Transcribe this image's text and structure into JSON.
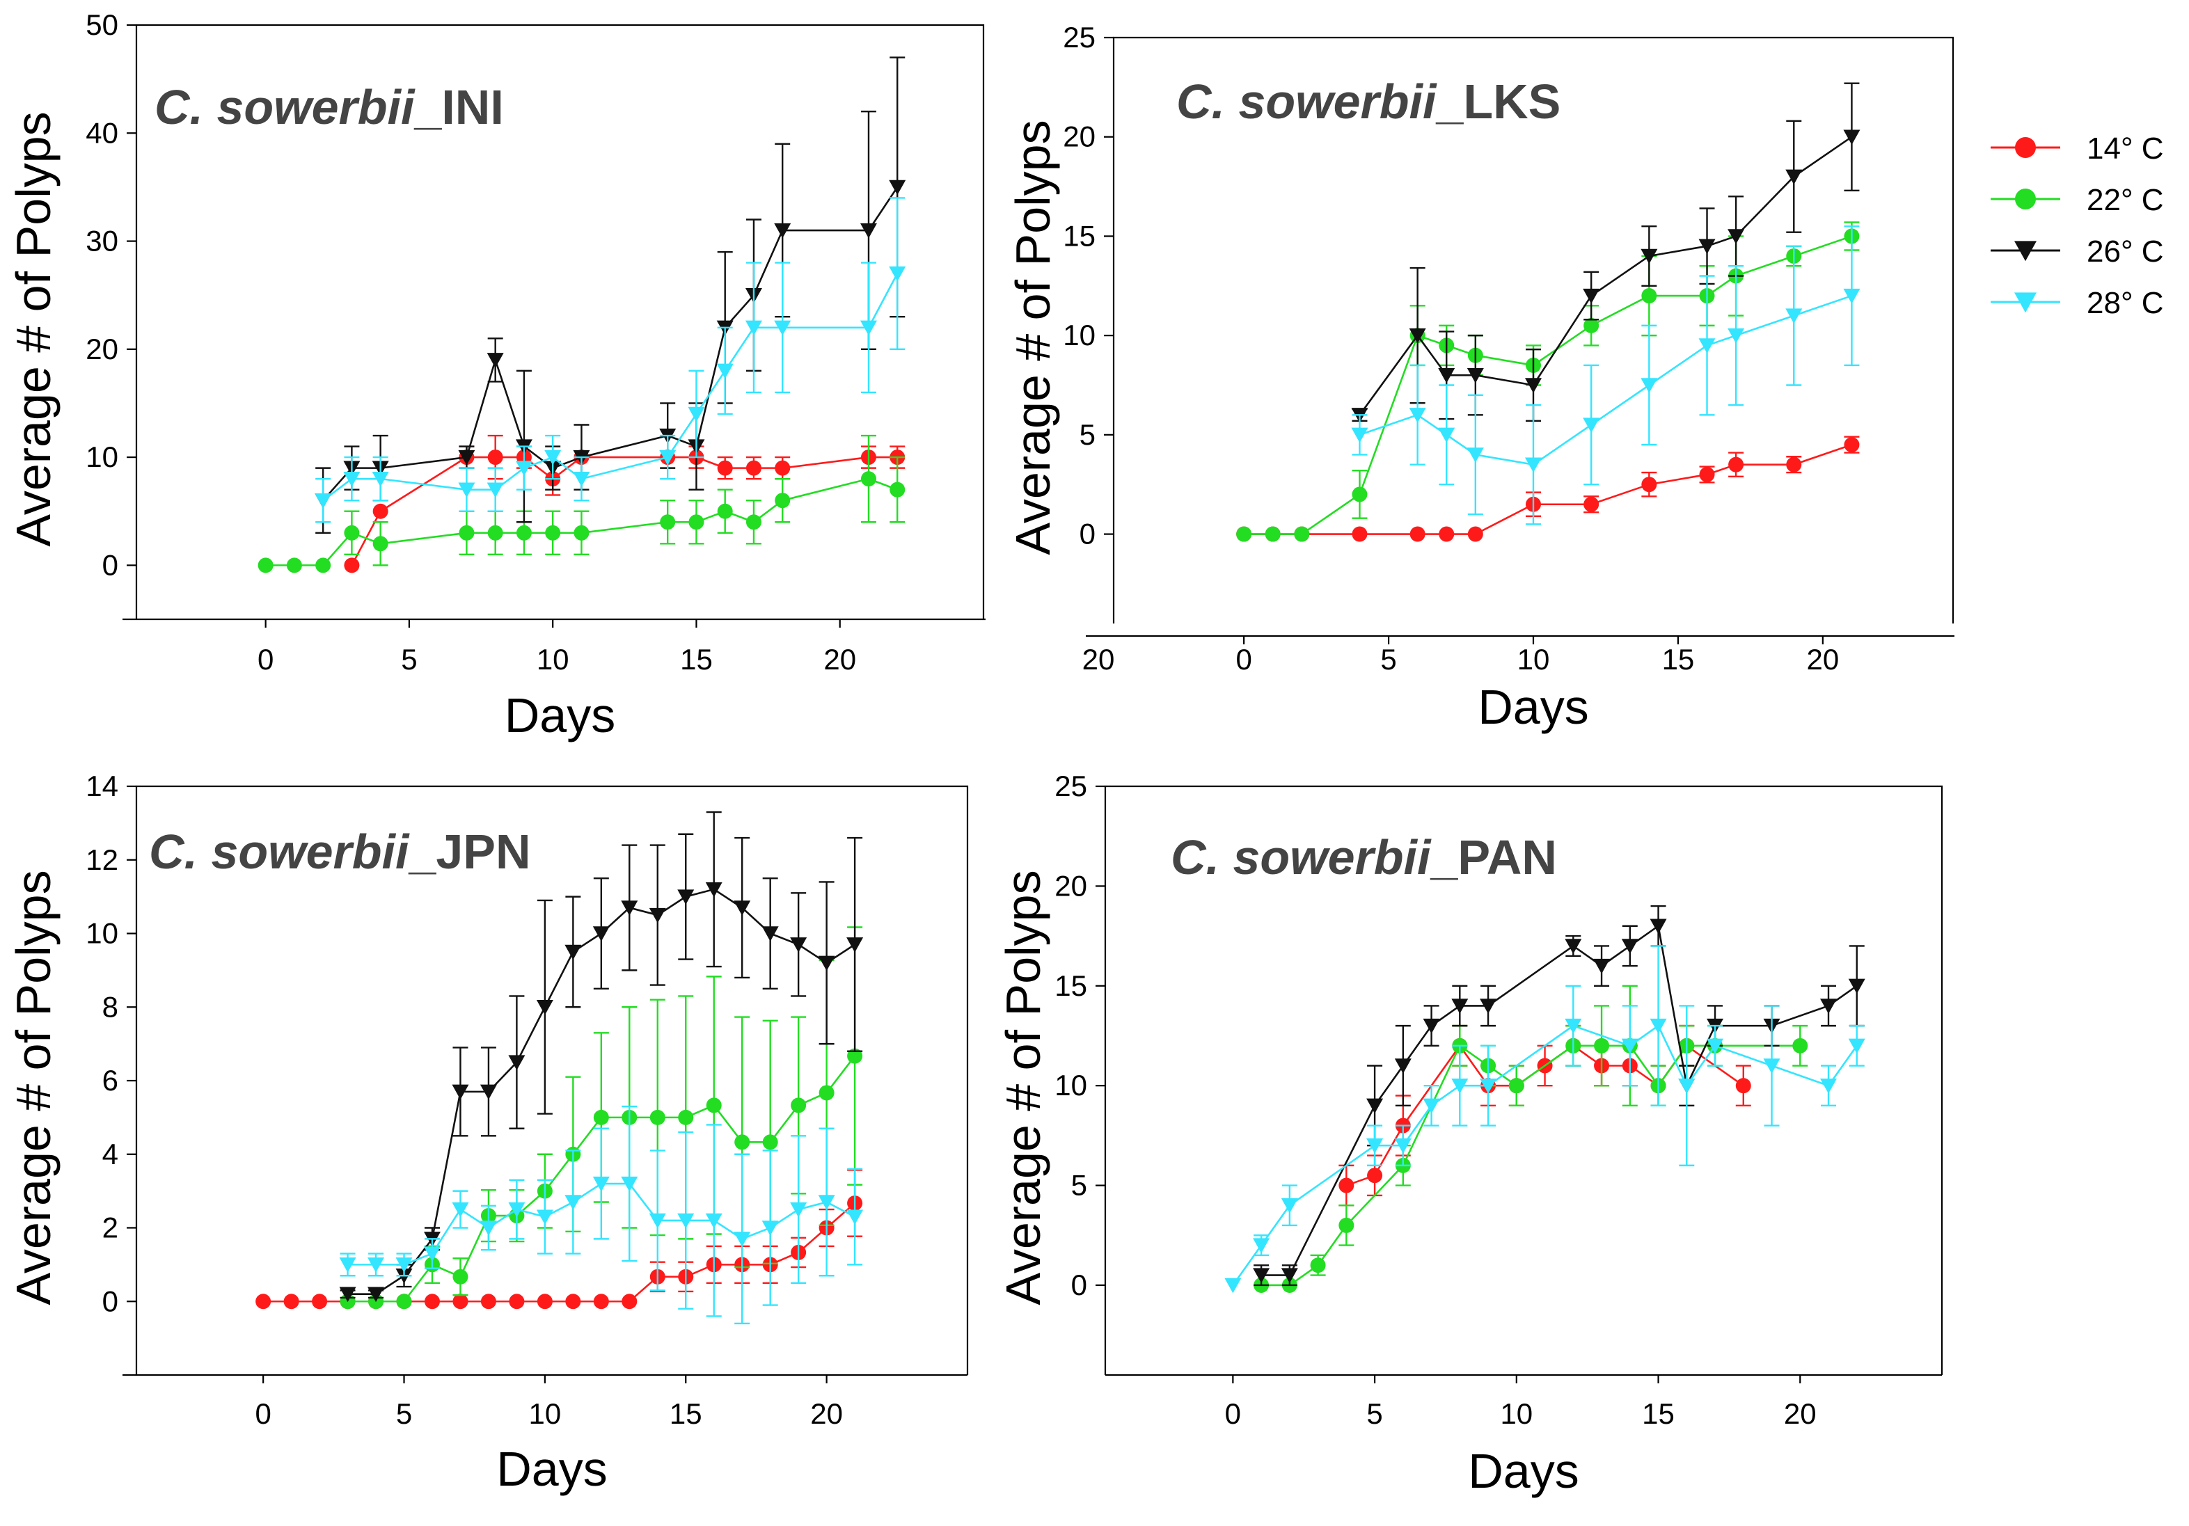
{
  "legend": {
    "entries": [
      {
        "label": "14° C",
        "color": "#ff1a1a",
        "marker": "circle"
      },
      {
        "label": "22° C",
        "color": "#22dd22",
        "marker": "circle"
      },
      {
        "label": "26° C",
        "color": "#111111",
        "marker": "triangle-down"
      },
      {
        "label": "28° C",
        "color": "#33e5ff",
        "marker": "triangle-down"
      }
    ]
  },
  "chart_data": [
    {
      "type": "line",
      "title_italic": "C. sowerbii",
      "title_suffix": "_INI",
      "xlabel": "Days",
      "ylabel": "Average # of Polyps",
      "xlim": [
        -4.5,
        25
      ],
      "ylim": [
        -5,
        50
      ],
      "xticks": [
        "0",
        "5",
        "10",
        "15",
        "20"
      ],
      "yticks": [
        "0",
        "10",
        "20",
        "30",
        "40",
        "50"
      ],
      "series": [
        {
          "name": "14° C",
          "color": "#ff1a1a",
          "marker": "circle",
          "x": [
            3,
            4,
            7,
            8,
            9,
            10,
            11,
            14,
            15,
            16,
            17,
            18,
            21,
            22
          ],
          "y": [
            0,
            5,
            10,
            10,
            10,
            8,
            10,
            10,
            10,
            9,
            9,
            9,
            10,
            10
          ],
          "err": [
            0,
            0,
            1,
            2,
            1,
            1.5,
            0,
            0,
            1,
            1,
            1,
            1,
            1,
            1
          ]
        },
        {
          "name": "22° C",
          "color": "#22dd22",
          "marker": "circle",
          "x": [
            0,
            1,
            2,
            3,
            4,
            7,
            8,
            9,
            10,
            11,
            14,
            15,
            16,
            17,
            18,
            21,
            22
          ],
          "y": [
            0,
            0,
            0,
            3,
            2,
            3,
            3,
            3,
            3,
            3,
            4,
            4,
            5,
            4,
            6,
            8,
            7
          ],
          "err": [
            0,
            0,
            0,
            2,
            2,
            2,
            2,
            2,
            2,
            2,
            2,
            2,
            2,
            2,
            2,
            4,
            3
          ]
        },
        {
          "name": "26° C",
          "color": "#111111",
          "marker": "triangle-down",
          "x": [
            2,
            3,
            4,
            7,
            8,
            9,
            10,
            11,
            14,
            15,
            16,
            17,
            18,
            21,
            22
          ],
          "y": [
            6,
            9,
            9,
            10,
            19,
            11,
            9,
            10,
            12,
            11,
            22,
            25,
            31,
            31,
            35
          ],
          "err": [
            3,
            2,
            3,
            1,
            2,
            7,
            2,
            3,
            3,
            4,
            7,
            7,
            8,
            11,
            12
          ]
        },
        {
          "name": "28° C",
          "color": "#33e5ff",
          "marker": "triangle-down",
          "x": [
            2,
            3,
            4,
            7,
            8,
            9,
            10,
            11,
            14,
            15,
            16,
            17,
            18,
            21,
            22
          ],
          "y": [
            6,
            8,
            8,
            7,
            7,
            9,
            10,
            8,
            10,
            14,
            18,
            22,
            22,
            22,
            27
          ],
          "err": [
            2,
            2,
            2,
            2,
            2,
            2,
            2,
            2,
            2,
            4,
            4,
            6,
            6,
            6,
            7
          ]
        }
      ]
    },
    {
      "type": "line",
      "title_italic": "C. sowerbii",
      "title_suffix": "_LKS",
      "xlabel": "Days",
      "ylabel": "Average # of Polyps",
      "xlim": [
        -4.5,
        24.5
      ],
      "ylim": [
        -4.5,
        25
      ],
      "xticks": [
        "0",
        "5",
        "10",
        "15",
        "20"
      ],
      "yticks": [
        "0",
        "5",
        "10",
        "15",
        "20",
        "25"
      ],
      "x_edge_label": "20",
      "series": [
        {
          "name": "14° C",
          "color": "#ff1a1a",
          "marker": "circle",
          "x": [
            0,
            1,
            2,
            4,
            6,
            7,
            8,
            10,
            12,
            14,
            16,
            17,
            19,
            21
          ],
          "y": [
            0,
            0,
            0,
            0,
            0,
            0,
            0,
            1.5,
            1.5,
            2.5,
            3,
            3.5,
            3.5,
            4.5
          ],
          "err": [
            0,
            0,
            0,
            0,
            0,
            0,
            0,
            0.6,
            0.4,
            0.6,
            0.4,
            0.6,
            0.4,
            0.4
          ]
        },
        {
          "name": "22° C",
          "color": "#22dd22",
          "marker": "circle",
          "x": [
            0,
            1,
            2,
            4,
            6,
            7,
            8,
            10,
            12,
            14,
            16,
            17,
            19,
            21
          ],
          "y": [
            0,
            0,
            0,
            2,
            10,
            9.5,
            9,
            8.5,
            10.5,
            12,
            12,
            13,
            14,
            15
          ],
          "err": [
            0,
            0,
            0,
            1.2,
            1.5,
            1,
            1,
            1,
            1,
            2,
            1.5,
            2,
            0.5,
            0.7
          ]
        },
        {
          "name": "26° C",
          "color": "#111111",
          "marker": "triangle-down",
          "x": [
            4,
            6,
            7,
            8,
            10,
            12,
            14,
            16,
            17,
            19,
            21
          ],
          "y": [
            6,
            10,
            8,
            8,
            7.5,
            12,
            14,
            14.5,
            15,
            18,
            20
          ],
          "err": [
            0.3,
            3.4,
            2.2,
            2,
            1.8,
            1.2,
            1.5,
            1.9,
            2,
            2.8,
            2.7
          ]
        },
        {
          "name": "28° C",
          "color": "#33e5ff",
          "marker": "triangle-down",
          "x": [
            4,
            6,
            7,
            8,
            10,
            12,
            14,
            16,
            17,
            19,
            21
          ],
          "y": [
            5,
            6,
            5,
            4,
            3.5,
            5.5,
            7.5,
            9.5,
            10,
            11,
            12
          ],
          "err": [
            1,
            2.5,
            2.5,
            3,
            3,
            3,
            3,
            3.5,
            3.5,
            3.5,
            3.5
          ]
        }
      ]
    },
    {
      "type": "line",
      "title_italic": "C. sowerbii",
      "title_suffix": "_JPN",
      "xlabel": "Days",
      "ylabel": "Average # of Polyps",
      "xlim": [
        -4.5,
        25
      ],
      "ylim": [
        -2,
        14
      ],
      "xticks": [
        "0",
        "5",
        "10",
        "15",
        "20"
      ],
      "yticks": [
        "0",
        "2",
        "4",
        "6",
        "8",
        "10",
        "12",
        "14"
      ],
      "series": [
        {
          "name": "14° C",
          "color": "#ff1a1a",
          "marker": "circle",
          "x": [
            0,
            1,
            2,
            3,
            4,
            5,
            6,
            7,
            8,
            9,
            10,
            11,
            12,
            13,
            14,
            15,
            16,
            17,
            18,
            19,
            20,
            21
          ],
          "y": [
            0,
            0,
            0,
            0,
            0,
            0,
            0,
            0,
            0,
            0,
            0,
            0,
            0,
            0,
            0.67,
            0.67,
            1,
            1,
            1,
            1.33,
            2,
            2.67
          ],
          "err": [
            0,
            0,
            0,
            0,
            0,
            0,
            0,
            0,
            0,
            0,
            0,
            0,
            0,
            0,
            0.4,
            0.4,
            0.5,
            0.5,
            0.5,
            0.4,
            0.5,
            0.9
          ]
        },
        {
          "name": "22° C",
          "color": "#22dd22",
          "marker": "circle",
          "x": [
            3,
            4,
            5,
            6,
            7,
            8,
            9,
            10,
            11,
            12,
            13,
            14,
            15,
            16,
            17,
            18,
            19,
            20,
            21
          ],
          "y": [
            0,
            0,
            0,
            1,
            0.67,
            2.33,
            2.33,
            3,
            4,
            5,
            5,
            5,
            5,
            5.33,
            4.33,
            4.33,
            5.33,
            5.67,
            6.67
          ],
          "err": [
            0,
            0,
            0,
            0.5,
            0.5,
            0.7,
            0.7,
            1,
            2.1,
            2.3,
            3,
            3.2,
            3.3,
            3.5,
            3.4,
            3.3,
            2.4,
            3.6,
            3.5
          ]
        },
        {
          "name": "26° C",
          "color": "#111111",
          "marker": "triangle-down",
          "x": [
            3,
            4,
            5,
            6,
            7,
            8,
            9,
            10,
            11,
            12,
            13,
            14,
            15,
            16,
            17,
            18,
            19,
            20,
            21
          ],
          "y": [
            0.2,
            0.2,
            0.7,
            1.7,
            5.7,
            5.7,
            6.5,
            8,
            9.5,
            10,
            10.7,
            10.5,
            11,
            11.2,
            10.7,
            10,
            9.7,
            9.2,
            9.7
          ],
          "err": [
            0.1,
            0.1,
            0.3,
            0.3,
            1.2,
            1.2,
            1.8,
            2.9,
            1.5,
            1.5,
            1.7,
            1.9,
            1.7,
            2.1,
            1.9,
            1.5,
            1.4,
            2.2,
            2.9
          ]
        },
        {
          "name": "28° C",
          "color": "#33e5ff",
          "marker": "triangle-down",
          "x": [
            3,
            4,
            5,
            6,
            7,
            8,
            9,
            10,
            11,
            12,
            13,
            14,
            15,
            16,
            17,
            18,
            19,
            20,
            21
          ],
          "y": [
            1,
            1,
            1,
            1.3,
            2.5,
            2,
            2.5,
            2.3,
            2.7,
            3.2,
            3.2,
            2.2,
            2.2,
            2.2,
            1.7,
            2,
            2.5,
            2.7,
            2.3
          ],
          "err": [
            0.3,
            0.3,
            0.3,
            0.4,
            0.5,
            0.6,
            0.8,
            1,
            1.4,
            1.5,
            2.1,
            1.9,
            2.4,
            2.6,
            2.3,
            2.1,
            2,
            2,
            1.3
          ]
        }
      ]
    },
    {
      "type": "line",
      "title_italic": "C. sowerbii",
      "title_suffix": "_PAN",
      "xlabel": "Days",
      "ylabel": "Average # of Polyps",
      "xlim": [
        -4.5,
        25
      ],
      "ylim": [
        -4.5,
        25
      ],
      "xticks": [
        "0",
        "5",
        "10",
        "15",
        "20"
      ],
      "yticks": [
        "0",
        "5",
        "10",
        "15",
        "20",
        "25"
      ],
      "series": [
        {
          "name": "14° C",
          "color": "#ff1a1a",
          "marker": "circle",
          "x": [
            4,
            5,
            6,
            8,
            9,
            10,
            11,
            12,
            13,
            14,
            15,
            16,
            18
          ],
          "y": [
            5,
            5.5,
            8,
            12,
            10,
            10,
            11,
            12,
            11,
            11,
            10,
            12,
            10
          ],
          "err": [
            1,
            1,
            1.5,
            1,
            1,
            1,
            1,
            1,
            1,
            1,
            1,
            1,
            1
          ]
        },
        {
          "name": "22° C",
          "color": "#22dd22",
          "marker": "circle",
          "x": [
            1,
            2,
            3,
            4,
            6,
            8,
            9,
            10,
            12,
            13,
            14,
            15,
            16,
            17,
            20
          ],
          "y": [
            0,
            0,
            1,
            3,
            6,
            12,
            11,
            10,
            12,
            12,
            12,
            10,
            12,
            12,
            12
          ],
          "err": [
            0,
            0,
            0.5,
            1,
            1,
            1,
            1,
            1,
            1,
            2,
            3,
            1,
            1,
            1,
            1
          ]
        },
        {
          "name": "26° C",
          "color": "#111111",
          "marker": "triangle-down",
          "x": [
            1,
            2,
            5,
            6,
            7,
            8,
            9,
            12,
            13,
            14,
            15,
            16,
            17,
            19,
            21,
            22
          ],
          "y": [
            0.5,
            0.5,
            9,
            11,
            13,
            14,
            14,
            17,
            16,
            17,
            18,
            10,
            13,
            13,
            14,
            15
          ],
          "err": [
            0.5,
            0.5,
            2,
            2,
            1,
            1,
            1,
            0.5,
            1,
            1,
            1,
            1,
            1,
            1,
            1,
            2
          ]
        },
        {
          "name": "28° C",
          "color": "#33e5ff",
          "marker": "triangle-down",
          "x": [
            0,
            1,
            2,
            5,
            6,
            7,
            8,
            9,
            12,
            14,
            15,
            16,
            17,
            19,
            21,
            22
          ],
          "y": [
            0,
            2,
            4,
            7,
            7,
            9,
            10,
            10,
            13,
            12,
            13,
            10,
            12,
            11,
            10,
            12
          ],
          "err": [
            0,
            0.5,
            1,
            1,
            1,
            1,
            2,
            2,
            2,
            2,
            4,
            4,
            1,
            3,
            1,
            1
          ]
        }
      ]
    }
  ]
}
